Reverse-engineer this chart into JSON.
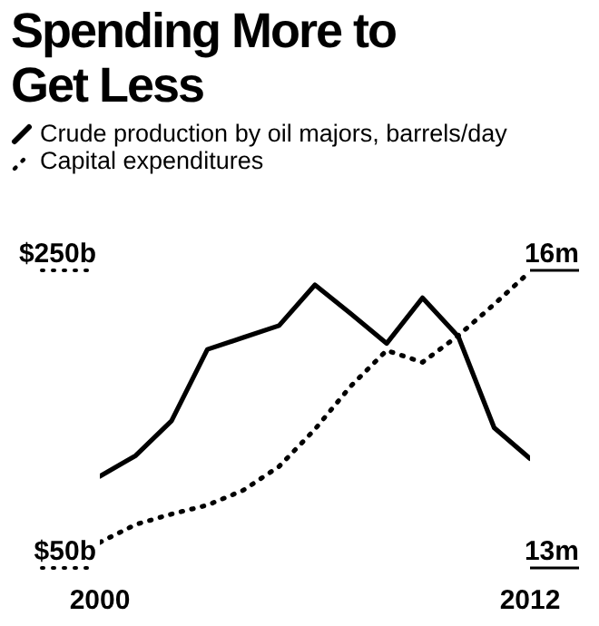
{
  "chart_data": {
    "type": "line",
    "title": "Spending More to Get Less",
    "legend": "top",
    "x": [
      2000,
      2001,
      2002,
      2003,
      2004,
      2005,
      2006,
      2007,
      2008,
      2009,
      2010,
      2011,
      2012
    ],
    "xlim": [
      2000,
      2012
    ],
    "xticks": [
      2000,
      2012
    ],
    "ylim": [
      50,
      250
    ],
    "yticks": [
      {
        "value": 50,
        "label": "$50b"
      },
      {
        "value": 250,
        "label": "$250b"
      }
    ],
    "y2lim": [
      13,
      16
    ],
    "y2ticks": [
      {
        "value": 13,
        "label": "13m"
      },
      {
        "value": 16,
        "label": "16m"
      }
    ],
    "grid": false,
    "series": [
      {
        "name": "Crude production by oil majors, barrels/day",
        "color": "#000000",
        "axis": "y2",
        "line_style": "solid",
        "values": [
          13.74,
          13.95,
          14.3,
          15.02,
          15.14,
          15.26,
          15.67,
          15.38,
          15.08,
          15.54,
          15.15,
          14.23,
          13.92
        ]
      },
      {
        "name": "Capital expenditures",
        "color": "#000000",
        "axis": "y",
        "line_style": "dotted",
        "values": [
          55,
          67,
          74,
          80,
          90,
          106,
          131,
          160,
          184,
          176,
          194,
          215,
          237
        ]
      }
    ]
  }
}
